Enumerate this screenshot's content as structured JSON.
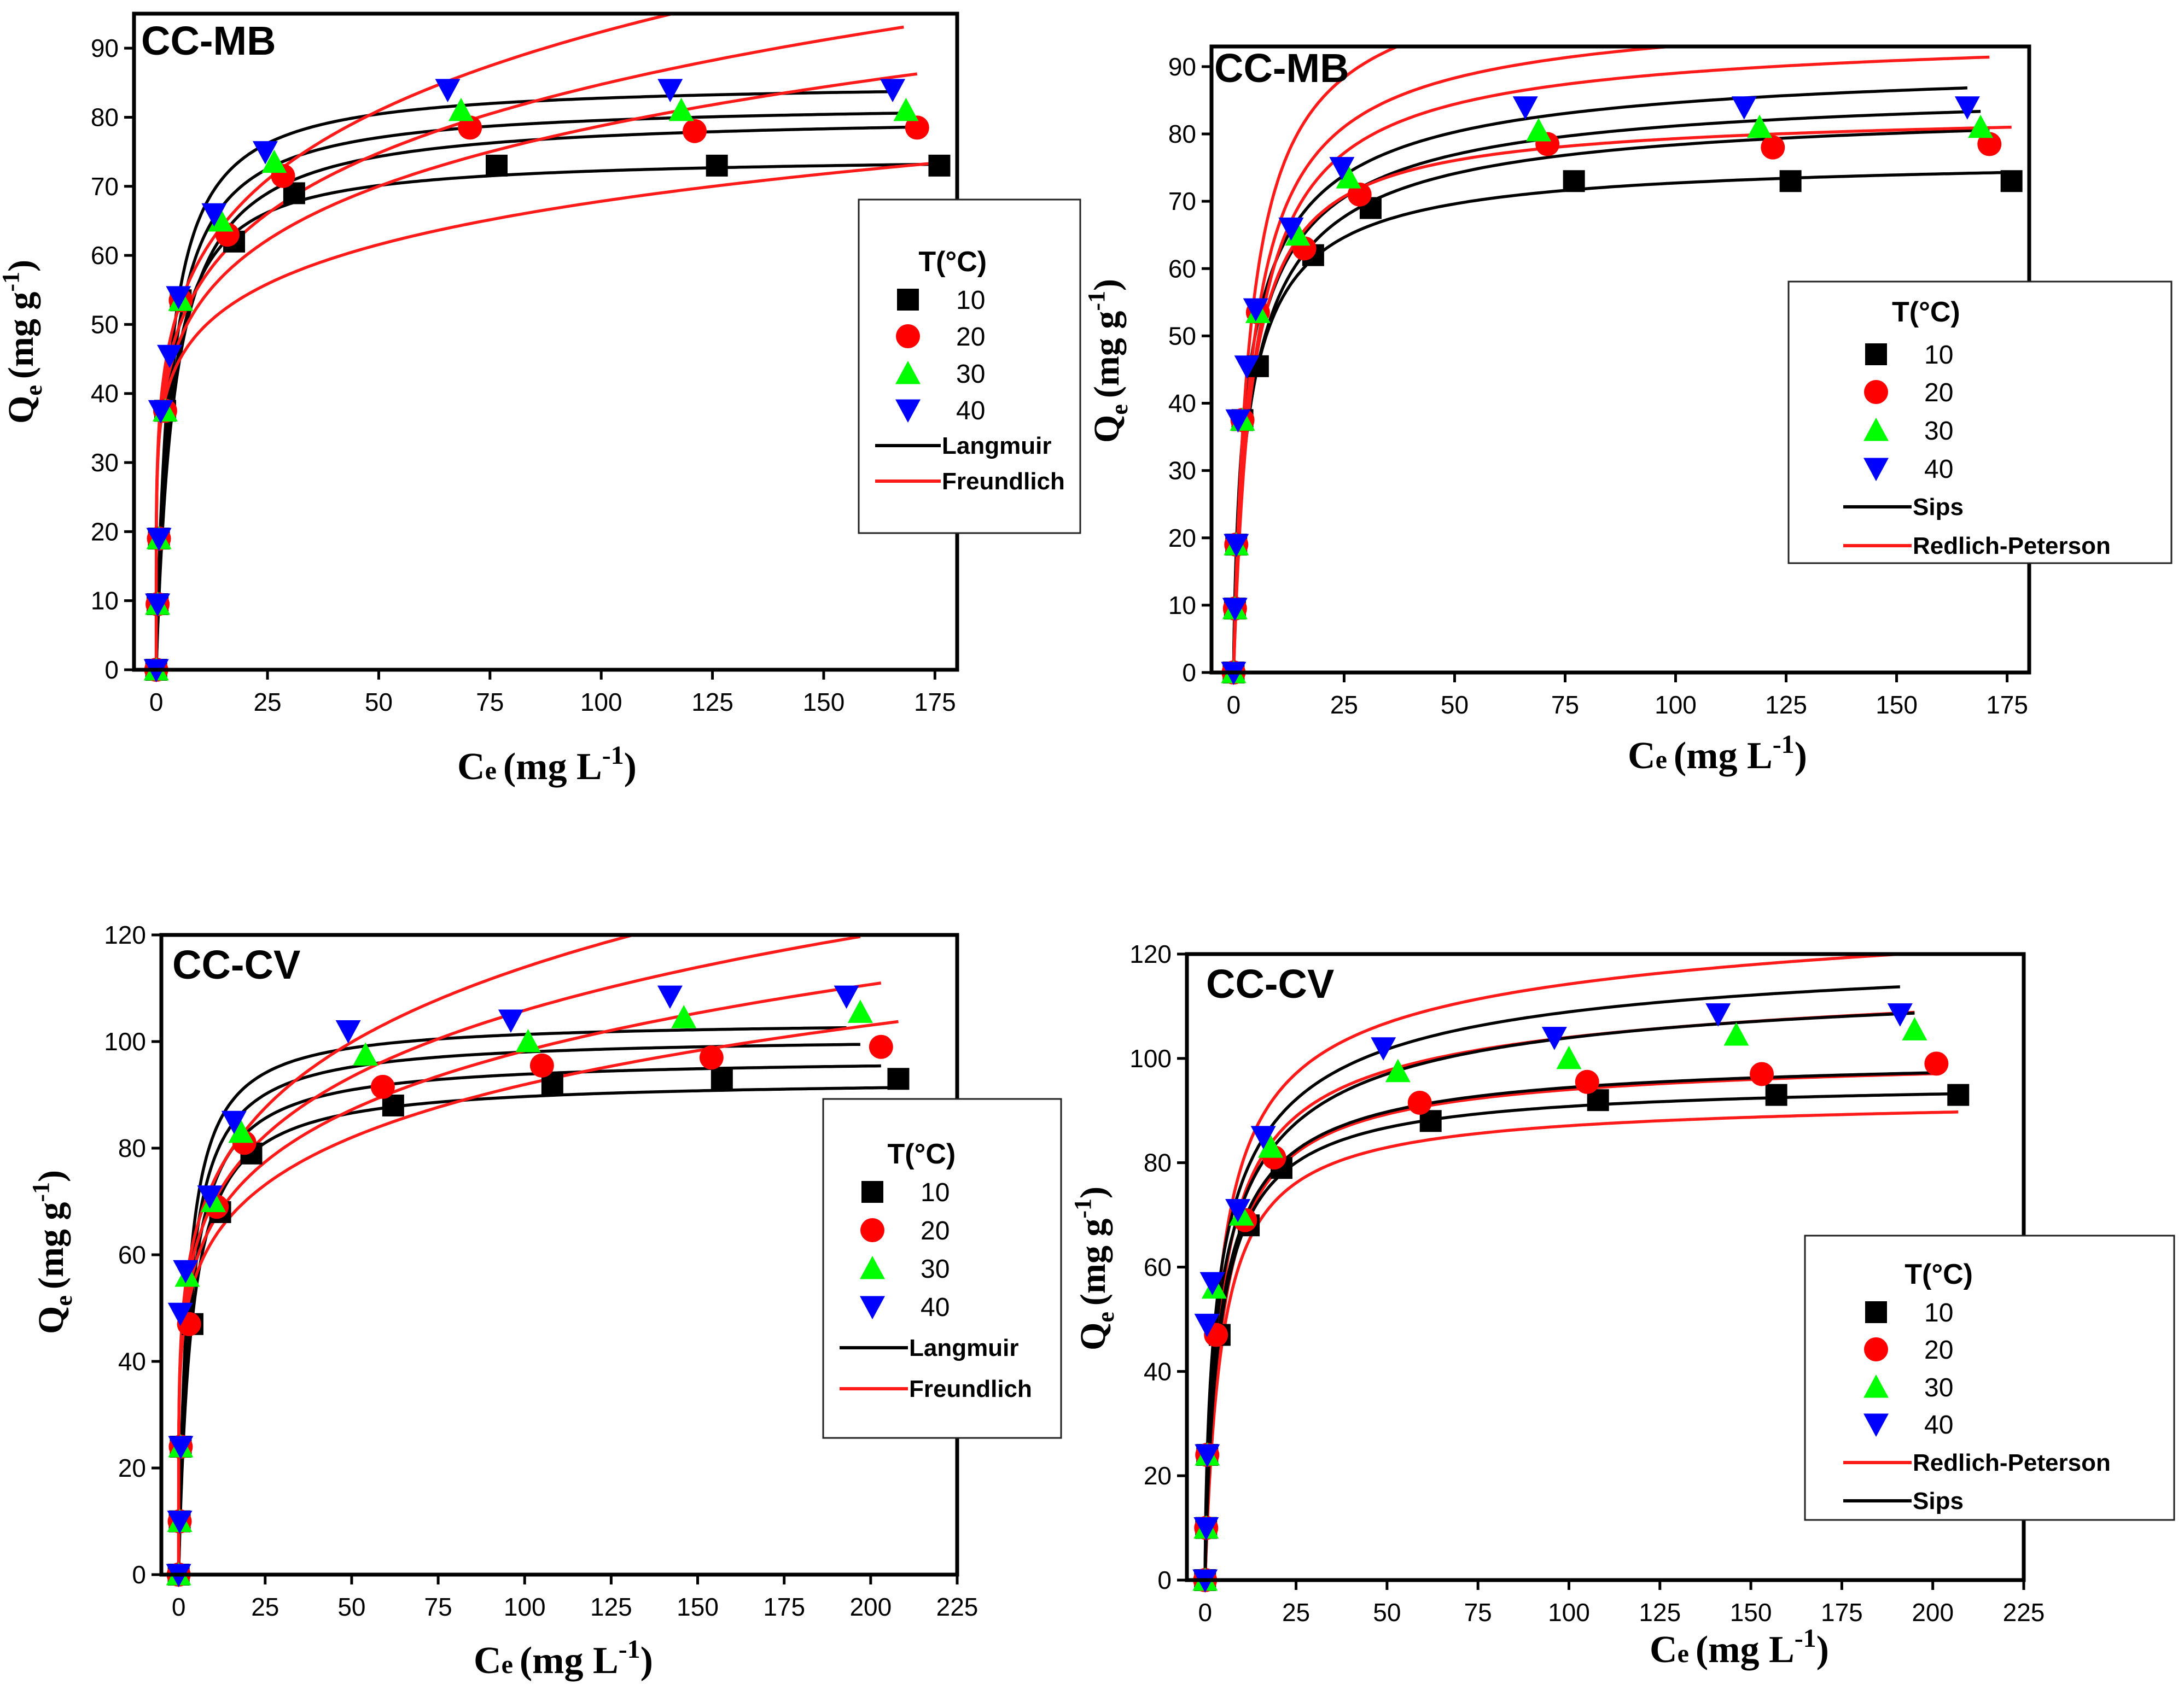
{
  "figure": {
    "colors": {
      "black": "#000000",
      "red": "#ff0000",
      "green": "#00ff00",
      "blue": "#0000ff",
      "langmuir": "#000000",
      "freundlich": "#ff1a1a",
      "sips": "#000000",
      "redlich_peterson": "#ff1a1a"
    }
  },
  "chart_data": [
    {
      "id": "mb-lf",
      "type": "scatter",
      "panel_label": "CC-MB",
      "xlabel": "Ce (mg L-1)",
      "ylabel": "Qe (mg g-1)",
      "xlim": [
        -5,
        180
      ],
      "ylim": [
        0,
        95
      ],
      "xticks": [
        0,
        25,
        50,
        75,
        100,
        125,
        150,
        175
      ],
      "yticks": [
        0,
        10,
        20,
        30,
        40,
        50,
        60,
        70,
        80,
        90
      ],
      "legend_title": "T(°C)",
      "legend_position": "middle-right",
      "series": [
        {
          "name": "10",
          "marker": "square",
          "color": "#000000",
          "x": [
            0,
            0.3,
            0.6,
            2,
            5.5,
            17.5,
            31,
            76.5,
            126,
            176
          ],
          "y": [
            0,
            9.5,
            19,
            37.5,
            53.5,
            62,
            69,
            73,
            73,
            73
          ]
        },
        {
          "name": "20",
          "marker": "circle",
          "color": "#ff0000",
          "x": [
            0,
            0.3,
            0.6,
            2,
            5.5,
            16,
            28.5,
            70.5,
            121,
            171
          ],
          "y": [
            0,
            9.5,
            19,
            37.5,
            53.5,
            63,
            71.5,
            78.5,
            78,
            78.5
          ]
        },
        {
          "name": "30",
          "marker": "triangle-up",
          "color": "#00ff00",
          "x": [
            0,
            0.3,
            0.6,
            2,
            5.5,
            14.5,
            26.5,
            68.5,
            118,
            168.5
          ],
          "y": [
            0,
            9.5,
            19,
            37.5,
            53.5,
            65,
            73.5,
            81,
            81,
            81
          ]
        },
        {
          "name": "40",
          "marker": "triangle-down",
          "color": "#0000ff",
          "x": [
            0,
            0.3,
            0.6,
            1,
            3,
            5,
            13,
            24.5,
            65.5,
            115.5,
            165.5
          ],
          "y": [
            0,
            9.5,
            19,
            37.5,
            45.5,
            54,
            66,
            75,
            84,
            84,
            84
          ]
        }
      ],
      "fits": [
        {
          "name": "Langmuir",
          "model": "langmuir",
          "color": "#000000",
          "curves": [
            {
              "qm": 74.5,
              "kl": 0.32,
              "xmax": 176
            },
            {
              "qm": 80.5,
              "kl": 0.24,
              "xmax": 171
            },
            {
              "qm": 82.2,
              "kl": 0.3,
              "xmax": 168
            },
            {
              "qm": 85.2,
              "kl": 0.34,
              "xmax": 166
            }
          ]
        },
        {
          "name": "Freundlich",
          "model": "freundlich",
          "color": "#ff1a1a",
          "curves": [
            {
              "kf": 35.6,
              "n": 0.14,
              "xmax": 176
            },
            {
              "kf": 36,
              "n": 0.17,
              "xmax": 171
            },
            {
              "kf": 37,
              "n": 0.18,
              "xmax": 168
            },
            {
              "kf": 38.5,
              "n": 0.19,
              "xmax": 166
            }
          ]
        }
      ]
    },
    {
      "id": "mb-sr",
      "type": "scatter",
      "panel_label": "CC-MB",
      "xlabel": "Ce (mg L-1)",
      "ylabel": "Qe (mg g-1)",
      "xlim": [
        -5,
        180
      ],
      "ylim": [
        0,
        93
      ],
      "xticks": [
        0,
        25,
        50,
        75,
        100,
        125,
        150,
        175
      ],
      "yticks": [
        0,
        10,
        20,
        30,
        40,
        50,
        60,
        70,
        80,
        90
      ],
      "legend_title": "T(°C)",
      "legend_position": "middle-right",
      "series": [
        {
          "name": "10",
          "marker": "square",
          "color": "#000000",
          "x": [
            0,
            0.3,
            0.6,
            2,
            5.5,
            18,
            31,
            77,
            126,
            176
          ],
          "y": [
            0,
            9.5,
            19,
            37.5,
            45.5,
            62,
            69,
            73,
            73,
            73
          ]
        },
        {
          "name": "20",
          "marker": "circle",
          "color": "#ff0000",
          "x": [
            0,
            0.3,
            0.6,
            2,
            5.5,
            16,
            28.5,
            71,
            122,
            171
          ],
          "y": [
            0,
            9.5,
            19,
            37.5,
            53.5,
            63,
            71,
            78.5,
            78,
            78.5
          ]
        },
        {
          "name": "30",
          "marker": "triangle-up",
          "color": "#00ff00",
          "x": [
            0,
            0.3,
            0.6,
            2,
            5.5,
            14.5,
            26,
            69,
            119,
            169
          ],
          "y": [
            0,
            9.5,
            19,
            37.5,
            53.5,
            65,
            73.5,
            80.5,
            81,
            81
          ]
        },
        {
          "name": "40",
          "marker": "triangle-down",
          "color": "#0000ff",
          "x": [
            0,
            0.3,
            0.6,
            1,
            3,
            5,
            13,
            24.5,
            66,
            115.5,
            166
          ],
          "y": [
            0,
            9.5,
            19,
            37.5,
            45.5,
            54,
            66,
            75,
            84,
            84,
            84
          ]
        }
      ],
      "fits": [
        {
          "name": "Sips",
          "model": "sips",
          "color": "#000000",
          "curves": [
            {
              "qm": 77,
              "ks": 0.28,
              "n": 0.85,
              "xmax": 176
            },
            {
              "qm": 85,
              "ks": 0.22,
              "n": 0.8,
              "xmax": 171
            },
            {
              "qm": 88,
              "ks": 0.24,
              "n": 0.78,
              "xmax": 169
            },
            {
              "qm": 92,
              "ks": 0.26,
              "n": 0.75,
              "xmax": 166
            }
          ]
        },
        {
          "name": "Redlich-Peterson",
          "model": "rp",
          "color": "#ff1a1a",
          "curves": [
            {
              "a": 22,
              "b": 0.28,
              "beta": 0.99,
              "xmax": 176
            },
            {
              "a": 20,
              "b": 0.23,
              "beta": 0.985,
              "xmax": 171
            },
            {
              "a": 23,
              "b": 0.26,
              "beta": 0.98,
              "xmax": 169
            },
            {
              "a": 28,
              "b": 0.3,
              "beta": 0.975,
              "xmax": 166
            }
          ]
        }
      ]
    },
    {
      "id": "cv-lf",
      "type": "scatter",
      "panel_label": "CC-CV",
      "xlabel": "Ce (mg L-1)",
      "ylabel": "Qe (mg g-1)",
      "xlim": [
        -5,
        225
      ],
      "ylim": [
        0,
        120
      ],
      "xticks": [
        0,
        25,
        50,
        75,
        100,
        125,
        150,
        175,
        200,
        225
      ],
      "yticks": [
        0,
        20,
        40,
        60,
        80,
        100,
        120
      ],
      "legend_title": "T(°C)",
      "legend_position": "middle-right",
      "series": [
        {
          "name": "10",
          "marker": "square",
          "color": "#000000",
          "x": [
            0,
            0.3,
            0.6,
            4,
            12,
            21,
            62,
            108,
            157,
            208
          ],
          "y": [
            0,
            10,
            24,
            47,
            68,
            79,
            88,
            92,
            93,
            93
          ]
        },
        {
          "name": "20",
          "marker": "circle",
          "color": "#ff0000",
          "x": [
            0,
            0.3,
            0.6,
            3,
            11,
            19,
            59,
            105,
            154,
            203
          ],
          "y": [
            0,
            10,
            24,
            47,
            69,
            81,
            91.5,
            95.5,
            97,
            99
          ]
        },
        {
          "name": "30",
          "marker": "triangle-up",
          "color": "#00ff00",
          "x": [
            0,
            0.3,
            0.6,
            2.5,
            10,
            18,
            54,
            101,
            146,
            197
          ],
          "y": [
            0,
            10,
            24,
            56,
            70,
            83,
            97.5,
            100,
            104.5,
            105.5
          ]
        },
        {
          "name": "40",
          "marker": "triangle-down",
          "color": "#0000ff",
          "x": [
            0,
            0.3,
            0.6,
            0.5,
            2,
            9,
            16,
            49,
            96,
            142,
            193
          ],
          "y": [
            0,
            10,
            24,
            49,
            57,
            71,
            85,
            102,
            104,
            108.5,
            108.5
          ]
        }
      ],
      "fits": [
        {
          "name": "Langmuir",
          "model": "langmuir",
          "color": "#000000",
          "curves": [
            {
              "qm": 93,
              "kl": 0.27,
              "xmax": 208
            },
            {
              "qm": 97,
              "kl": 0.3,
              "xmax": 203
            },
            {
              "qm": 101,
              "kl": 0.33,
              "xmax": 197
            },
            {
              "qm": 104,
              "kl": 0.38,
              "xmax": 193
            }
          ]
        },
        {
          "name": "Freundlich",
          "model": "freundlich",
          "color": "#ff1a1a",
          "curves": [
            {
              "kf": 43,
              "n": 0.165,
              "xmax": 208
            },
            {
              "kf": 44.5,
              "n": 0.172,
              "xmax": 203
            },
            {
              "kf": 46,
              "n": 0.181,
              "xmax": 197
            },
            {
              "kf": 47.5,
              "n": 0.19,
              "xmax": 193
            }
          ]
        }
      ]
    },
    {
      "id": "cv-sr",
      "type": "scatter",
      "panel_label": "CC-CV",
      "xlabel": "Ce (mg L-1)",
      "ylabel": "Qe (mg g-1)",
      "xlim": [
        -5,
        225
      ],
      "ylim": [
        0,
        120
      ],
      "xticks": [
        0,
        25,
        50,
        75,
        100,
        125,
        150,
        175,
        200,
        225
      ],
      "yticks": [
        0,
        20,
        40,
        60,
        80,
        100,
        120
      ],
      "legend_title": "T(°C)",
      "legend_position": "bottom-right",
      "series": [
        {
          "name": "10",
          "marker": "square",
          "color": "#000000",
          "x": [
            0,
            0.3,
            0.6,
            4,
            12,
            21,
            62,
            108,
            157,
            207
          ],
          "y": [
            0,
            10,
            24,
            47,
            68,
            79,
            88,
            92,
            93,
            93
          ]
        },
        {
          "name": "20",
          "marker": "circle",
          "color": "#ff0000",
          "x": [
            0,
            0.3,
            0.6,
            3,
            11,
            19,
            59,
            105,
            153,
            201
          ],
          "y": [
            0,
            10,
            24,
            47,
            69,
            81,
            91.5,
            95.5,
            97,
            99
          ]
        },
        {
          "name": "30",
          "marker": "triangle-up",
          "color": "#00ff00",
          "x": [
            0,
            0.3,
            0.6,
            2.5,
            10,
            18,
            53,
            100,
            146,
            195
          ],
          "y": [
            0,
            10,
            24,
            56,
            70,
            83,
            97.5,
            100,
            104.5,
            105.5
          ]
        },
        {
          "name": "40",
          "marker": "triangle-down",
          "color": "#0000ff",
          "x": [
            0,
            0.3,
            0.6,
            0.5,
            2,
            9,
            16,
            49,
            96,
            141,
            191
          ],
          "y": [
            0,
            10,
            24,
            49,
            57,
            71,
            85,
            102,
            104,
            108.5,
            108.5
          ]
        }
      ],
      "fits": [
        {
          "name": "Redlich-Peterson",
          "model": "rp",
          "color": "#ff1a1a",
          "curves": [
            {
              "a": 20,
              "b": 0.23,
              "beta": 0.99,
              "xmax": 207
            },
            {
              "a": 22,
              "b": 0.24,
              "beta": 0.985,
              "xmax": 201
            },
            {
              "a": 27,
              "b": 0.3,
              "beta": 0.96,
              "xmax": 195
            },
            {
              "a": 32,
              "b": 0.34,
              "beta": 0.95,
              "xmax": 191
            }
          ]
        },
        {
          "name": "Sips",
          "model": "sips",
          "color": "#000000",
          "curves": [
            {
              "qm": 96,
              "ks": 0.24,
              "n": 0.9,
              "xmax": 207
            },
            {
              "qm": 101,
              "ks": 0.23,
              "n": 0.85,
              "xmax": 201
            },
            {
              "qm": 118,
              "ks": 0.19,
              "n": 0.68,
              "xmax": 195
            },
            {
              "qm": 124,
              "ks": 0.2,
              "n": 0.66,
              "xmax": 191
            }
          ]
        }
      ]
    }
  ]
}
